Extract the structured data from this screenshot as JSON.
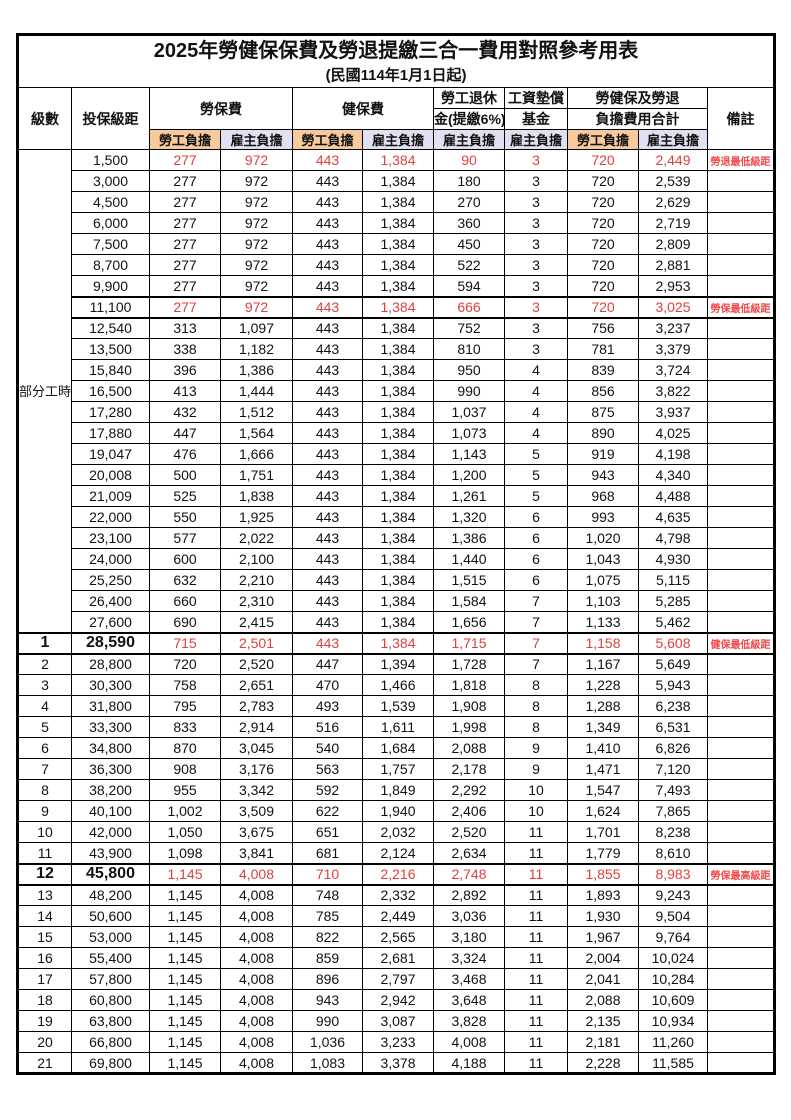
{
  "title": "2025年勞健保保費及勞退提繳三合一費用對照參考用表",
  "subtitle": "(民國114年1月1日起)",
  "header": {
    "level": "級數",
    "bracket": "投保級距",
    "labor_ins": "勞保費",
    "health_ins": "健保費",
    "pension_l1": "勞工退休",
    "pension_l2": "金(提繳6%)",
    "wage_fund_l1": "工資墊償",
    "wage_fund_l2": "基金",
    "total_l1": "勞健保及勞退",
    "total_l2": "負擔費用合計",
    "remark": "備註",
    "employee": "勞工負擔",
    "employer": "雇主負擔"
  },
  "part_time_label": "部分工時",
  "colors": {
    "employee_bg": "#f6ca9c",
    "employer_bg": "#e0e0f2",
    "highlight_red": "#e0403c",
    "remark_red": "#f24a4a"
  },
  "rows": [
    {
      "level": "",
      "bracket": "1,500",
      "li_emp": "277",
      "li_er": "972",
      "hi_emp": "443",
      "hi_er": "1,384",
      "pension": "90",
      "fund": "3",
      "tot_emp": "720",
      "tot_er": "2,449",
      "remark": "勞退最低級距",
      "red": true,
      "thick": false,
      "big": false
    },
    {
      "level": "",
      "bracket": "3,000",
      "li_emp": "277",
      "li_er": "972",
      "hi_emp": "443",
      "hi_er": "1,384",
      "pension": "180",
      "fund": "3",
      "tot_emp": "720",
      "tot_er": "2,539",
      "remark": "",
      "red": false,
      "thick": false,
      "big": false
    },
    {
      "level": "",
      "bracket": "4,500",
      "li_emp": "277",
      "li_er": "972",
      "hi_emp": "443",
      "hi_er": "1,384",
      "pension": "270",
      "fund": "3",
      "tot_emp": "720",
      "tot_er": "2,629",
      "remark": "",
      "red": false,
      "thick": false,
      "big": false
    },
    {
      "level": "",
      "bracket": "6,000",
      "li_emp": "277",
      "li_er": "972",
      "hi_emp": "443",
      "hi_er": "1,384",
      "pension": "360",
      "fund": "3",
      "tot_emp": "720",
      "tot_er": "2,719",
      "remark": "",
      "red": false,
      "thick": false,
      "big": false
    },
    {
      "level": "",
      "bracket": "7,500",
      "li_emp": "277",
      "li_er": "972",
      "hi_emp": "443",
      "hi_er": "1,384",
      "pension": "450",
      "fund": "3",
      "tot_emp": "720",
      "tot_er": "2,809",
      "remark": "",
      "red": false,
      "thick": false,
      "big": false
    },
    {
      "level": "",
      "bracket": "8,700",
      "li_emp": "277",
      "li_er": "972",
      "hi_emp": "443",
      "hi_er": "1,384",
      "pension": "522",
      "fund": "3",
      "tot_emp": "720",
      "tot_er": "2,881",
      "remark": "",
      "red": false,
      "thick": false,
      "big": false
    },
    {
      "level": "",
      "bracket": "9,900",
      "li_emp": "277",
      "li_er": "972",
      "hi_emp": "443",
      "hi_er": "1,384",
      "pension": "594",
      "fund": "3",
      "tot_emp": "720",
      "tot_er": "2,953",
      "remark": "",
      "red": false,
      "thick": false,
      "big": false
    },
    {
      "level": "",
      "bracket": "11,100",
      "li_emp": "277",
      "li_er": "972",
      "hi_emp": "443",
      "hi_er": "1,384",
      "pension": "666",
      "fund": "3",
      "tot_emp": "720",
      "tot_er": "3,025",
      "remark": "勞保最低級距",
      "red": true,
      "thick": true,
      "big": false
    },
    {
      "level": "",
      "bracket": "12,540",
      "li_emp": "313",
      "li_er": "1,097",
      "hi_emp": "443",
      "hi_er": "1,384",
      "pension": "752",
      "fund": "3",
      "tot_emp": "756",
      "tot_er": "3,237",
      "remark": "",
      "red": false,
      "thick": false,
      "big": false
    },
    {
      "level": "",
      "bracket": "13,500",
      "li_emp": "338",
      "li_er": "1,182",
      "hi_emp": "443",
      "hi_er": "1,384",
      "pension": "810",
      "fund": "3",
      "tot_emp": "781",
      "tot_er": "3,379",
      "remark": "",
      "red": false,
      "thick": false,
      "big": false
    },
    {
      "level": "",
      "bracket": "15,840",
      "li_emp": "396",
      "li_er": "1,386",
      "hi_emp": "443",
      "hi_er": "1,384",
      "pension": "950",
      "fund": "4",
      "tot_emp": "839",
      "tot_er": "3,724",
      "remark": "",
      "red": false,
      "thick": false,
      "big": false
    },
    {
      "level": "",
      "bracket": "16,500",
      "li_emp": "413",
      "li_er": "1,444",
      "hi_emp": "443",
      "hi_er": "1,384",
      "pension": "990",
      "fund": "4",
      "tot_emp": "856",
      "tot_er": "3,822",
      "remark": "",
      "red": false,
      "thick": false,
      "big": false
    },
    {
      "level": "",
      "bracket": "17,280",
      "li_emp": "432",
      "li_er": "1,512",
      "hi_emp": "443",
      "hi_er": "1,384",
      "pension": "1,037",
      "fund": "4",
      "tot_emp": "875",
      "tot_er": "3,937",
      "remark": "",
      "red": false,
      "thick": false,
      "big": false
    },
    {
      "level": "",
      "bracket": "17,880",
      "li_emp": "447",
      "li_er": "1,564",
      "hi_emp": "443",
      "hi_er": "1,384",
      "pension": "1,073",
      "fund": "4",
      "tot_emp": "890",
      "tot_er": "4,025",
      "remark": "",
      "red": false,
      "thick": false,
      "big": false
    },
    {
      "level": "",
      "bracket": "19,047",
      "li_emp": "476",
      "li_er": "1,666",
      "hi_emp": "443",
      "hi_er": "1,384",
      "pension": "1,143",
      "fund": "5",
      "tot_emp": "919",
      "tot_er": "4,198",
      "remark": "",
      "red": false,
      "thick": false,
      "big": false
    },
    {
      "level": "",
      "bracket": "20,008",
      "li_emp": "500",
      "li_er": "1,751",
      "hi_emp": "443",
      "hi_er": "1,384",
      "pension": "1,200",
      "fund": "5",
      "tot_emp": "943",
      "tot_er": "4,340",
      "remark": "",
      "red": false,
      "thick": false,
      "big": false
    },
    {
      "level": "",
      "bracket": "21,009",
      "li_emp": "525",
      "li_er": "1,838",
      "hi_emp": "443",
      "hi_er": "1,384",
      "pension": "1,261",
      "fund": "5",
      "tot_emp": "968",
      "tot_er": "4,488",
      "remark": "",
      "red": false,
      "thick": false,
      "big": false
    },
    {
      "level": "",
      "bracket": "22,000",
      "li_emp": "550",
      "li_er": "1,925",
      "hi_emp": "443",
      "hi_er": "1,384",
      "pension": "1,320",
      "fund": "6",
      "tot_emp": "993",
      "tot_er": "4,635",
      "remark": "",
      "red": false,
      "thick": false,
      "big": false
    },
    {
      "level": "",
      "bracket": "23,100",
      "li_emp": "577",
      "li_er": "2,022",
      "hi_emp": "443",
      "hi_er": "1,384",
      "pension": "1,386",
      "fund": "6",
      "tot_emp": "1,020",
      "tot_er": "4,798",
      "remark": "",
      "red": false,
      "thick": false,
      "big": false
    },
    {
      "level": "",
      "bracket": "24,000",
      "li_emp": "600",
      "li_er": "2,100",
      "hi_emp": "443",
      "hi_er": "1,384",
      "pension": "1,440",
      "fund": "6",
      "tot_emp": "1,043",
      "tot_er": "4,930",
      "remark": "",
      "red": false,
      "thick": false,
      "big": false
    },
    {
      "level": "",
      "bracket": "25,250",
      "li_emp": "632",
      "li_er": "2,210",
      "hi_emp": "443",
      "hi_er": "1,384",
      "pension": "1,515",
      "fund": "6",
      "tot_emp": "1,075",
      "tot_er": "5,115",
      "remark": "",
      "red": false,
      "thick": false,
      "big": false
    },
    {
      "level": "",
      "bracket": "26,400",
      "li_emp": "660",
      "li_er": "2,310",
      "hi_emp": "443",
      "hi_er": "1,384",
      "pension": "1,584",
      "fund": "7",
      "tot_emp": "1,103",
      "tot_er": "5,285",
      "remark": "",
      "red": false,
      "thick": false,
      "big": false
    },
    {
      "level": "",
      "bracket": "27,600",
      "li_emp": "690",
      "li_er": "2,415",
      "hi_emp": "443",
      "hi_er": "1,384",
      "pension": "1,656",
      "fund": "7",
      "tot_emp": "1,133",
      "tot_er": "5,462",
      "remark": "",
      "red": false,
      "thick": false,
      "big": false
    },
    {
      "level": "1",
      "bracket": "28,590",
      "li_emp": "715",
      "li_er": "2,501",
      "hi_emp": "443",
      "hi_er": "1,384",
      "pension": "1,715",
      "fund": "7",
      "tot_emp": "1,158",
      "tot_er": "5,608",
      "remark": "健保最低級距",
      "red": true,
      "thick": true,
      "big": true
    },
    {
      "level": "2",
      "bracket": "28,800",
      "li_emp": "720",
      "li_er": "2,520",
      "hi_emp": "447",
      "hi_er": "1,394",
      "pension": "1,728",
      "fund": "7",
      "tot_emp": "1,167",
      "tot_er": "5,649",
      "remark": "",
      "red": false,
      "thick": false,
      "big": false
    },
    {
      "level": "3",
      "bracket": "30,300",
      "li_emp": "758",
      "li_er": "2,651",
      "hi_emp": "470",
      "hi_er": "1,466",
      "pension": "1,818",
      "fund": "8",
      "tot_emp": "1,228",
      "tot_er": "5,943",
      "remark": "",
      "red": false,
      "thick": false,
      "big": false
    },
    {
      "level": "4",
      "bracket": "31,800",
      "li_emp": "795",
      "li_er": "2,783",
      "hi_emp": "493",
      "hi_er": "1,539",
      "pension": "1,908",
      "fund": "8",
      "tot_emp": "1,288",
      "tot_er": "6,238",
      "remark": "",
      "red": false,
      "thick": false,
      "big": false
    },
    {
      "level": "5",
      "bracket": "33,300",
      "li_emp": "833",
      "li_er": "2,914",
      "hi_emp": "516",
      "hi_er": "1,611",
      "pension": "1,998",
      "fund": "8",
      "tot_emp": "1,349",
      "tot_er": "6,531",
      "remark": "",
      "red": false,
      "thick": false,
      "big": false
    },
    {
      "level": "6",
      "bracket": "34,800",
      "li_emp": "870",
      "li_er": "3,045",
      "hi_emp": "540",
      "hi_er": "1,684",
      "pension": "2,088",
      "fund": "9",
      "tot_emp": "1,410",
      "tot_er": "6,826",
      "remark": "",
      "red": false,
      "thick": false,
      "big": false
    },
    {
      "level": "7",
      "bracket": "36,300",
      "li_emp": "908",
      "li_er": "3,176",
      "hi_emp": "563",
      "hi_er": "1,757",
      "pension": "2,178",
      "fund": "9",
      "tot_emp": "1,471",
      "tot_er": "7,120",
      "remark": "",
      "red": false,
      "thick": false,
      "big": false
    },
    {
      "level": "8",
      "bracket": "38,200",
      "li_emp": "955",
      "li_er": "3,342",
      "hi_emp": "592",
      "hi_er": "1,849",
      "pension": "2,292",
      "fund": "10",
      "tot_emp": "1,547",
      "tot_er": "7,493",
      "remark": "",
      "red": false,
      "thick": false,
      "big": false
    },
    {
      "level": "9",
      "bracket": "40,100",
      "li_emp": "1,002",
      "li_er": "3,509",
      "hi_emp": "622",
      "hi_er": "1,940",
      "pension": "2,406",
      "fund": "10",
      "tot_emp": "1,624",
      "tot_er": "7,865",
      "remark": "",
      "red": false,
      "thick": false,
      "big": false
    },
    {
      "level": "10",
      "bracket": "42,000",
      "li_emp": "1,050",
      "li_er": "3,675",
      "hi_emp": "651",
      "hi_er": "2,032",
      "pension": "2,520",
      "fund": "11",
      "tot_emp": "1,701",
      "tot_er": "8,238",
      "remark": "",
      "red": false,
      "thick": false,
      "big": false
    },
    {
      "level": "11",
      "bracket": "43,900",
      "li_emp": "1,098",
      "li_er": "3,841",
      "hi_emp": "681",
      "hi_er": "2,124",
      "pension": "2,634",
      "fund": "11",
      "tot_emp": "1,779",
      "tot_er": "8,610",
      "remark": "",
      "red": false,
      "thick": false,
      "big": false
    },
    {
      "level": "12",
      "bracket": "45,800",
      "li_emp": "1,145",
      "li_er": "4,008",
      "hi_emp": "710",
      "hi_er": "2,216",
      "pension": "2,748",
      "fund": "11",
      "tot_emp": "1,855",
      "tot_er": "8,983",
      "remark": "勞保最高級距",
      "red": true,
      "thick": true,
      "big": true
    },
    {
      "level": "13",
      "bracket": "48,200",
      "li_emp": "1,145",
      "li_er": "4,008",
      "hi_emp": "748",
      "hi_er": "2,332",
      "pension": "2,892",
      "fund": "11",
      "tot_emp": "1,893",
      "tot_er": "9,243",
      "remark": "",
      "red": false,
      "thick": false,
      "big": false
    },
    {
      "level": "14",
      "bracket": "50,600",
      "li_emp": "1,145",
      "li_er": "4,008",
      "hi_emp": "785",
      "hi_er": "2,449",
      "pension": "3,036",
      "fund": "11",
      "tot_emp": "1,930",
      "tot_er": "9,504",
      "remark": "",
      "red": false,
      "thick": false,
      "big": false
    },
    {
      "level": "15",
      "bracket": "53,000",
      "li_emp": "1,145",
      "li_er": "4,008",
      "hi_emp": "822",
      "hi_er": "2,565",
      "pension": "3,180",
      "fund": "11",
      "tot_emp": "1,967",
      "tot_er": "9,764",
      "remark": "",
      "red": false,
      "thick": false,
      "big": false
    },
    {
      "level": "16",
      "bracket": "55,400",
      "li_emp": "1,145",
      "li_er": "4,008",
      "hi_emp": "859",
      "hi_er": "2,681",
      "pension": "3,324",
      "fund": "11",
      "tot_emp": "2,004",
      "tot_er": "10,024",
      "remark": "",
      "red": false,
      "thick": false,
      "big": false
    },
    {
      "level": "17",
      "bracket": "57,800",
      "li_emp": "1,145",
      "li_er": "4,008",
      "hi_emp": "896",
      "hi_er": "2,797",
      "pension": "3,468",
      "fund": "11",
      "tot_emp": "2,041",
      "tot_er": "10,284",
      "remark": "",
      "red": false,
      "thick": false,
      "big": false
    },
    {
      "level": "18",
      "bracket": "60,800",
      "li_emp": "1,145",
      "li_er": "4,008",
      "hi_emp": "943",
      "hi_er": "2,942",
      "pension": "3,648",
      "fund": "11",
      "tot_emp": "2,088",
      "tot_er": "10,609",
      "remark": "",
      "red": false,
      "thick": false,
      "big": false
    },
    {
      "level": "19",
      "bracket": "63,800",
      "li_emp": "1,145",
      "li_er": "4,008",
      "hi_emp": "990",
      "hi_er": "3,087",
      "pension": "3,828",
      "fund": "11",
      "tot_emp": "2,135",
      "tot_er": "10,934",
      "remark": "",
      "red": false,
      "thick": false,
      "big": false
    },
    {
      "level": "20",
      "bracket": "66,800",
      "li_emp": "1,145",
      "li_er": "4,008",
      "hi_emp": "1,036",
      "hi_er": "3,233",
      "pension": "4,008",
      "fund": "11",
      "tot_emp": "2,181",
      "tot_er": "11,260",
      "remark": "",
      "red": false,
      "thick": false,
      "big": false
    },
    {
      "level": "21",
      "bracket": "69,800",
      "li_emp": "1,145",
      "li_er": "4,008",
      "hi_emp": "1,083",
      "hi_er": "3,378",
      "pension": "4,188",
      "fund": "11",
      "tot_emp": "2,228",
      "tot_er": "11,585",
      "remark": "",
      "red": false,
      "thick": false,
      "big": false
    }
  ]
}
